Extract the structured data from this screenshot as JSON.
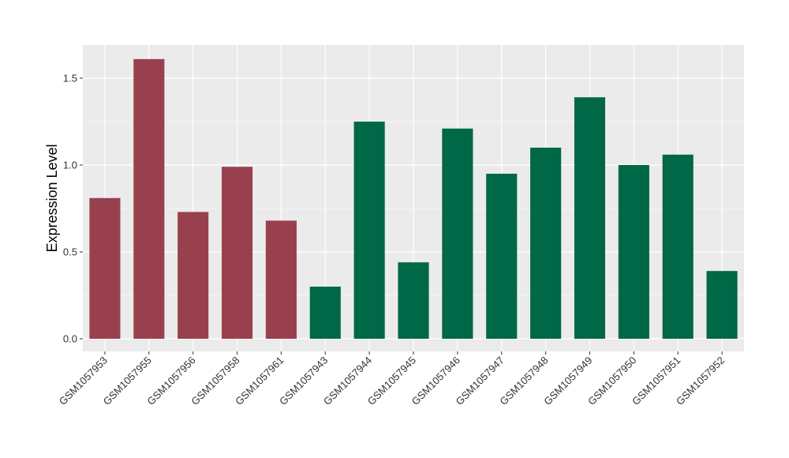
{
  "chart_data": {
    "type": "bar",
    "title": "",
    "xlabel": "",
    "ylabel": "Expression Level",
    "ylim": [
      0,
      1.7
    ],
    "yticks": [
      "0.0",
      "0.5",
      "1.0",
      "1.5"
    ],
    "grid": true,
    "legend": "none",
    "categories": [
      "GSM1057953",
      "GSM1057955",
      "GSM1057956",
      "GSM1057958",
      "GSM1057961",
      "GSM1057943",
      "GSM1057944",
      "GSM1057945",
      "GSM1057946",
      "GSM1057947",
      "GSM1057948",
      "GSM1057949",
      "GSM1057950",
      "GSM1057951",
      "GSM1057952"
    ],
    "values": [
      0.81,
      1.61,
      0.73,
      0.99,
      0.68,
      0.3,
      1.25,
      0.44,
      1.21,
      0.95,
      1.1,
      1.39,
      1.0,
      1.06,
      0.39
    ],
    "group_colors": [
      "#99404f",
      "#99404f",
      "#99404f",
      "#99404f",
      "#99404f",
      "#006846",
      "#006846",
      "#006846",
      "#006846",
      "#006846",
      "#006846",
      "#006846",
      "#006846",
      "#006846",
      "#006846"
    ],
    "panel_background": "#ebebeb",
    "grid_color": "#ffffff"
  }
}
